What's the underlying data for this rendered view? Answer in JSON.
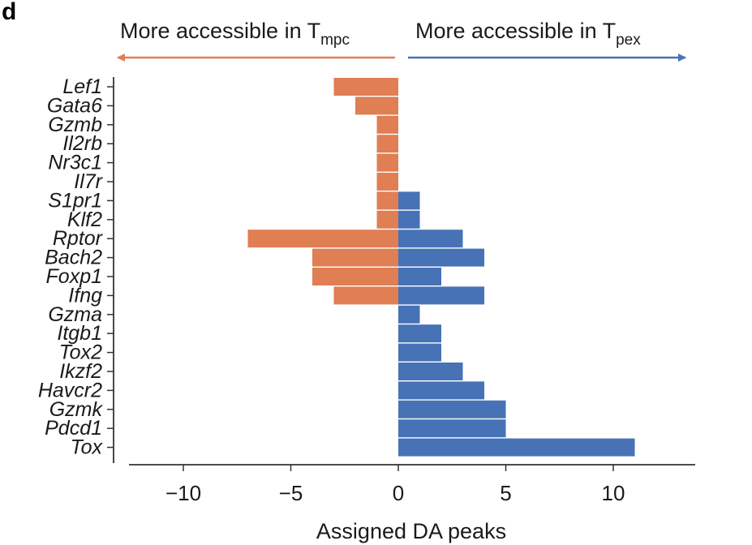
{
  "panel_letter": "d",
  "header": {
    "left": {
      "text": "More accessible in T",
      "sub": "mpc"
    },
    "right": {
      "text": "More accessible in T",
      "sub": "pex"
    }
  },
  "colors": {
    "negative": "#e07e54",
    "positive": "#4772b6",
    "axis": "#333333"
  },
  "chart_data": {
    "type": "bar",
    "orientation": "horizontal",
    "categories": [
      "Lef1",
      "Gata6",
      "Gzmb",
      "Il2rb",
      "Nr3c1",
      "Il7r",
      "S1pr1",
      "Klf2",
      "Rptor",
      "Bach2",
      "Foxp1",
      "Ifng",
      "Gzma",
      "Itgb1",
      "Tox2",
      "Ikzf2",
      "Havcr2",
      "Gzmk",
      "Pdcd1",
      "Tox"
    ],
    "series": [
      {
        "values": [
          -3,
          -2,
          -1,
          -1,
          -1,
          -1,
          -1,
          -1,
          -7,
          -4,
          -4,
          -3,
          0,
          0,
          0,
          0,
          0,
          0,
          0,
          0
        ]
      },
      {
        "values": [
          0,
          0,
          0,
          0,
          0,
          0,
          1,
          1,
          3,
          4,
          2,
          4,
          1,
          2,
          2,
          3,
          4,
          5,
          5,
          11
        ]
      }
    ],
    "xlabel": "Assigned DA peaks",
    "xticks": [
      -10,
      -5,
      0,
      5,
      10
    ],
    "xtick_labels": [
      "−10",
      "−5",
      "0",
      "5",
      "10"
    ],
    "xlim": [
      -12.5,
      13.5
    ]
  }
}
